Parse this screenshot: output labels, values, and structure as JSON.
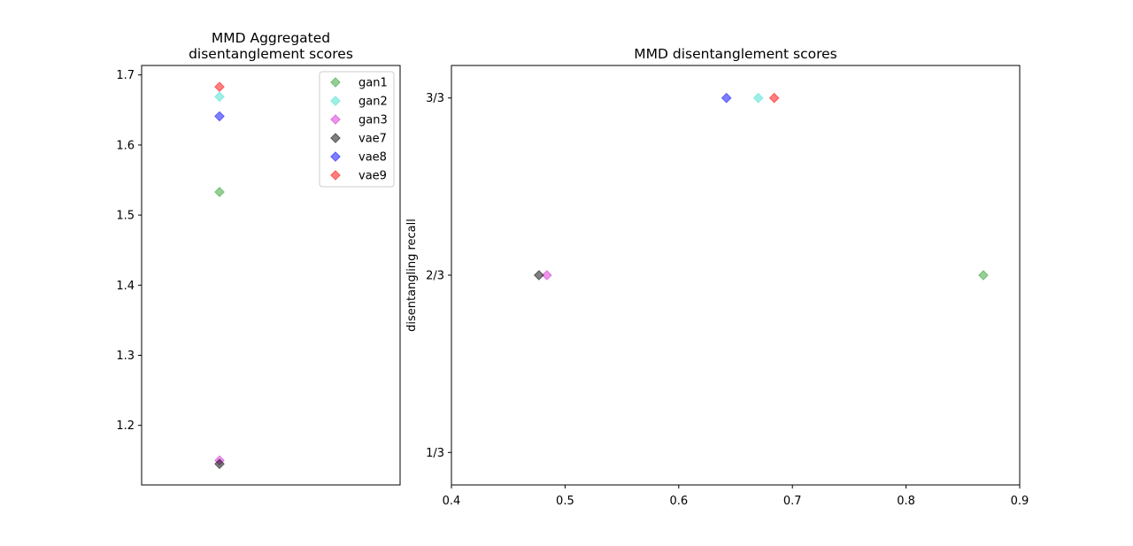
{
  "colors": {
    "gan1": "#2ca02c",
    "gan2": "#40e0d0",
    "gan3": "#d62ad6",
    "vae7": "#000000",
    "vae8": "#0000ff",
    "vae9": "#ff0000"
  },
  "chart_data": [
    {
      "type": "scatter",
      "title": "MMD Aggregated\ndisentanglement scores",
      "xlabel": "",
      "ylabel": "",
      "ylim": [
        1.115,
        1.7135
      ],
      "yticks": [
        1.2,
        1.3,
        1.4,
        1.5,
        1.6,
        1.7
      ],
      "ytick_labels": [
        "1.2",
        "1.3",
        "1.4",
        "1.5",
        "1.6",
        "1.7"
      ],
      "x_ticks_visible": false,
      "legend_position": "top-right",
      "marker": "diamond",
      "grid": false,
      "series": [
        {
          "name": "gan1",
          "y": 1.533
        },
        {
          "name": "gan2",
          "y": 1.669
        },
        {
          "name": "gan3",
          "y": 1.15
        },
        {
          "name": "vae7",
          "y": 1.145
        },
        {
          "name": "vae8",
          "y": 1.641
        },
        {
          "name": "vae9",
          "y": 1.683
        }
      ]
    },
    {
      "type": "scatter",
      "title": "MMD disentanglement scores",
      "xlabel": "",
      "ylabel": "disentangling recall",
      "xlim": [
        0.4,
        0.9
      ],
      "xticks": [
        0.4,
        0.5,
        0.6,
        0.7,
        0.8,
        0.9
      ],
      "xtick_labels": [
        "0.4",
        "0.5",
        "0.6",
        "0.7",
        "0.8",
        "0.9"
      ],
      "ylim": [
        0.2722,
        1.0611
      ],
      "yticks": [
        0.3333,
        0.6667,
        1.0
      ],
      "ytick_labels": [
        "1/3",
        "2/3",
        "3/3"
      ],
      "marker": "diamond",
      "grid": false,
      "series": [
        {
          "name": "gan1",
          "x": 0.868,
          "y": 0.6667
        },
        {
          "name": "gan2",
          "x": 0.67,
          "y": 1.0
        },
        {
          "name": "gan3",
          "x": 0.484,
          "y": 0.6667
        },
        {
          "name": "vae7",
          "x": 0.477,
          "y": 0.6667
        },
        {
          "name": "vae8",
          "x": 0.642,
          "y": 1.0
        },
        {
          "name": "vae9",
          "x": 0.684,
          "y": 1.0
        }
      ]
    }
  ]
}
